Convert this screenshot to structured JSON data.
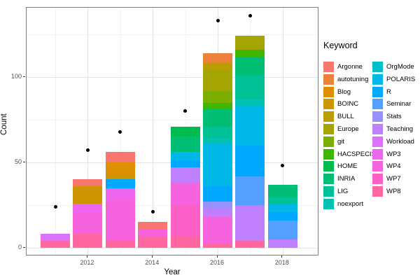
{
  "axes": {
    "y_title": "Count",
    "x_title": "Year",
    "y_ticks": [
      {
        "label": "0",
        "value": 0
      },
      {
        "label": "50",
        "value": 50
      },
      {
        "label": "100",
        "value": 100
      }
    ],
    "x_ticks": [
      {
        "label": "2012",
        "value": 2012
      },
      {
        "label": "2014",
        "value": 2014
      },
      {
        "label": "2016",
        "value": 2016
      },
      {
        "label": "2018",
        "value": 2018
      }
    ],
    "tick_color": "#4d4d4d"
  },
  "style": {
    "background": "#ffffff",
    "panel_border": "#7f7f7f",
    "grid_major": "#e4e4e4",
    "grid_minor": "#f2f2f2",
    "point_color": "#000000"
  },
  "chart_data": {
    "type": "bar",
    "stacked": true,
    "title": "",
    "xlabel": "Year",
    "ylabel": "Count",
    "legend_title": "Keyword",
    "legend_position": "right",
    "grid": true,
    "xlim": [
      2010.4,
      2018.6
    ],
    "ylim": [
      -6,
      141
    ],
    "y_major_gridlines": [
      0,
      50,
      100
    ],
    "y_minor_gridlines": [
      25,
      75,
      125
    ],
    "x_major_gridlines": [
      2012,
      2014,
      2016,
      2018
    ],
    "x_minor_gridlines": [
      2011,
      2013,
      2015,
      2017
    ],
    "palette": [
      {
        "name": "Argonne",
        "color": "#F8766D"
      },
      {
        "name": "autotuning",
        "color": "#EC823C"
      },
      {
        "name": "Blog",
        "color": "#DE8F00"
      },
      {
        "name": "BOINC",
        "color": "#CD9600"
      },
      {
        "name": "BULL",
        "color": "#BB9D00"
      },
      {
        "name": "Europe",
        "color": "#A4A500"
      },
      {
        "name": "git",
        "color": "#7CAE00"
      },
      {
        "name": "HACSPECIS",
        "color": "#3FB600"
      },
      {
        "name": "HOME",
        "color": "#00BB4E"
      },
      {
        "name": "INRIA",
        "color": "#00BF74"
      },
      {
        "name": "LIG",
        "color": "#00C096"
      },
      {
        "name": "noexport",
        "color": "#00C1B2"
      },
      {
        "name": "OrgMode",
        "color": "#00BFC8"
      },
      {
        "name": "POLARIS",
        "color": "#00B7E8"
      },
      {
        "name": "R",
        "color": "#00A9FF"
      },
      {
        "name": "Seminar",
        "color": "#559FFF"
      },
      {
        "name": "Stats",
        "color": "#9591FF"
      },
      {
        "name": "Teaching",
        "color": "#BF80FF"
      },
      {
        "name": "Workload",
        "color": "#DB72FB"
      },
      {
        "name": "WP3",
        "color": "#EE65F0"
      },
      {
        "name": "WP4",
        "color": "#F763DF"
      },
      {
        "name": "WP7",
        "color": "#FD61C7"
      },
      {
        "name": "WP8",
        "color": "#FF67A2"
      }
    ],
    "legend_columns": [
      [
        "Argonne",
        "autotuning",
        "Blog",
        "BOINC",
        "BULL",
        "Europe",
        "git",
        "HACSPECIS",
        "HOME",
        "INRIA",
        "LIG",
        "noexport"
      ],
      [
        "OrgMode",
        "POLARIS",
        "R",
        "Seminar",
        "Stats",
        "Teaching",
        "Workload",
        "WP3",
        "WP4",
        "WP7",
        "WP8"
      ]
    ],
    "bars": [
      {
        "year": 2011,
        "total": 8,
        "segments_bottom_to_top": [
          {
            "keyword": "WP8",
            "value": 4
          },
          {
            "keyword": "Workload",
            "value": 4
          }
        ]
      },
      {
        "year": 2012,
        "total": 40,
        "segments_bottom_to_top": [
          {
            "keyword": "WP8",
            "value": 8
          },
          {
            "keyword": "WP4",
            "value": 13
          },
          {
            "keyword": "WP3",
            "value": 5
          },
          {
            "keyword": "BOINC",
            "value": 10
          },
          {
            "keyword": "Argonne",
            "value": 4
          }
        ]
      },
      {
        "year": 2013,
        "total": 56,
        "segments_bottom_to_top": [
          {
            "keyword": "WP8",
            "value": 4
          },
          {
            "keyword": "WP4",
            "value": 24
          },
          {
            "keyword": "WP3",
            "value": 7
          },
          {
            "keyword": "R",
            "value": 5
          },
          {
            "keyword": "BOINC",
            "value": 3
          },
          {
            "keyword": "Blog",
            "value": 7
          },
          {
            "keyword": "Argonne",
            "value": 6
          }
        ]
      },
      {
        "year": 2014,
        "total": 15,
        "segments_bottom_to_top": [
          {
            "keyword": "WP8",
            "value": 7
          },
          {
            "keyword": "WP4",
            "value": 4
          },
          {
            "keyword": "Argonne",
            "value": 4
          }
        ]
      },
      {
        "year": 2015,
        "total": 71,
        "segments_bottom_to_top": [
          {
            "keyword": "WP8",
            "value": 7
          },
          {
            "keyword": "WP7",
            "value": 18
          },
          {
            "keyword": "WP4",
            "value": 13
          },
          {
            "keyword": "Teaching",
            "value": 9
          },
          {
            "keyword": "R",
            "value": 4
          },
          {
            "keyword": "POLARIS",
            "value": 5
          },
          {
            "keyword": "INRIA",
            "value": 9
          },
          {
            "keyword": "HOME",
            "value": 6
          }
        ]
      },
      {
        "year": 2016,
        "total": 114,
        "segments_bottom_to_top": [
          {
            "keyword": "WP8",
            "value": 3
          },
          {
            "keyword": "WP4",
            "value": 15
          },
          {
            "keyword": "Teaching",
            "value": 5
          },
          {
            "keyword": "Stats",
            "value": 4
          },
          {
            "keyword": "R",
            "value": 9
          },
          {
            "keyword": "POLARIS",
            "value": 25
          },
          {
            "keyword": "noexport",
            "value": 3
          },
          {
            "keyword": "LIG",
            "value": 7
          },
          {
            "keyword": "INRIA",
            "value": 10
          },
          {
            "keyword": "HACSPECIS",
            "value": 4
          },
          {
            "keyword": "git",
            "value": 7
          },
          {
            "keyword": "Europe",
            "value": 12
          },
          {
            "keyword": "BULL",
            "value": 4
          },
          {
            "keyword": "autotuning",
            "value": 6
          }
        ]
      },
      {
        "year": 2017,
        "total": 124,
        "segments_bottom_to_top": [
          {
            "keyword": "WP8",
            "value": 4
          },
          {
            "keyword": "Teaching",
            "value": 21
          },
          {
            "keyword": "Seminar",
            "value": 17
          },
          {
            "keyword": "R",
            "value": 18
          },
          {
            "keyword": "POLARIS",
            "value": 23
          },
          {
            "keyword": "noexport",
            "value": 4
          },
          {
            "keyword": "LIG",
            "value": 14
          },
          {
            "keyword": "INRIA",
            "value": 11
          },
          {
            "keyword": "HACSPECIS",
            "value": 4
          },
          {
            "keyword": "Europe",
            "value": 8
          }
        ]
      },
      {
        "year": 2018,
        "total": 37,
        "segments_bottom_to_top": [
          {
            "keyword": "Teaching",
            "value": 5
          },
          {
            "keyword": "Seminar",
            "value": 11
          },
          {
            "keyword": "R",
            "value": 5
          },
          {
            "keyword": "POLARIS",
            "value": 5
          },
          {
            "keyword": "LIG",
            "value": 4
          },
          {
            "keyword": "INRIA",
            "value": 7
          }
        ]
      }
    ],
    "points": [
      {
        "year": 2011,
        "count": 24
      },
      {
        "year": 2012,
        "count": 57
      },
      {
        "year": 2013,
        "count": 68
      },
      {
        "year": 2014,
        "count": 21
      },
      {
        "year": 2015,
        "count": 80
      },
      {
        "year": 2016,
        "count": 133
      },
      {
        "year": 2017,
        "count": 136
      },
      {
        "year": 2018,
        "count": 48
      }
    ]
  }
}
